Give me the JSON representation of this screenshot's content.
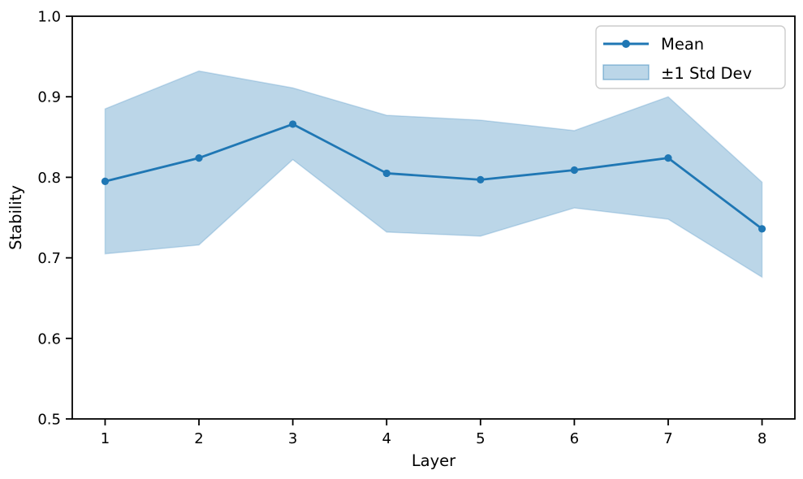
{
  "chart_data": {
    "type": "line",
    "title": "",
    "xlabel": "Layer",
    "ylabel": "Stability",
    "x": [
      1,
      2,
      3,
      4,
      5,
      6,
      7,
      8
    ],
    "series": [
      {
        "name": "Mean",
        "color": "#1f77b4",
        "marker": "circle",
        "values": [
          0.795,
          0.824,
          0.866,
          0.805,
          0.797,
          0.809,
          0.824,
          0.736
        ]
      }
    ],
    "band": {
      "name": "±1 Std Dev",
      "color": "#1f77b4",
      "alpha": 0.3,
      "upper": [
        0.885,
        0.932,
        0.911,
        0.877,
        0.871,
        0.858,
        0.9,
        0.794
      ],
      "lower": [
        0.705,
        0.716,
        0.822,
        0.732,
        0.727,
        0.762,
        0.748,
        0.676
      ]
    },
    "xlim": [
      0.65,
      8.35
    ],
    "ylim": [
      0.5,
      1.0
    ],
    "xticks": [
      1,
      2,
      3,
      4,
      5,
      6,
      7,
      8
    ],
    "yticks": [
      0.5,
      0.6,
      0.7,
      0.8,
      0.9,
      1.0
    ],
    "grid": false,
    "legend": {
      "position": "upper right",
      "entries": [
        "Mean",
        "±1 Std Dev"
      ]
    },
    "axis_color": "#000000",
    "background": "#ffffff"
  }
}
